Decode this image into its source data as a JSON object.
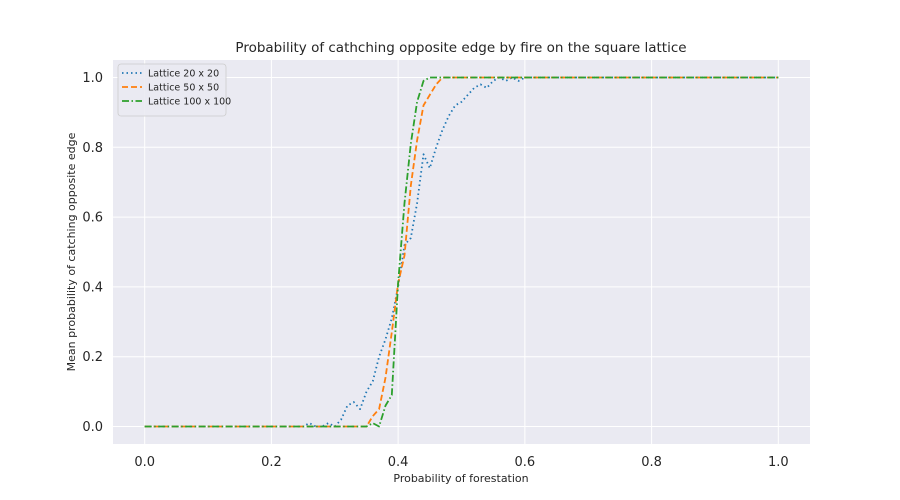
{
  "chart_data": {
    "type": "line",
    "title": "Probability of cathching opposite edge by fire on the square lattice",
    "xlabel": "Probability of forestation",
    "ylabel": "Mean probability of catching opposite edge",
    "xlim": [
      -0.05,
      1.05
    ],
    "ylim": [
      -0.05,
      1.05
    ],
    "x_ticks": [
      "0.0",
      "0.2",
      "0.4",
      "0.6",
      "0.8",
      "1.0"
    ],
    "y_ticks": [
      "0.0",
      "0.2",
      "0.4",
      "0.6",
      "0.8",
      "1.0"
    ],
    "grid": true,
    "legend_position": "top-left",
    "series": [
      {
        "name": "Lattice 20 x 20",
        "color": "#1f77b4",
        "dash": "dotted",
        "x": [
          0.0,
          0.25,
          0.26,
          0.27,
          0.28,
          0.29,
          0.3,
          0.31,
          0.32,
          0.33,
          0.34,
          0.35,
          0.36,
          0.37,
          0.38,
          0.39,
          0.4,
          0.41,
          0.42,
          0.43,
          0.44,
          0.45,
          0.46,
          0.47,
          0.48,
          0.49,
          0.5,
          0.51,
          0.52,
          0.53,
          0.54,
          0.55,
          0.56,
          0.57,
          0.58,
          0.59,
          0.6,
          1.0
        ],
        "y": [
          0.0,
          0.0,
          0.01,
          0.0,
          0.0,
          0.01,
          0.0,
          0.02,
          0.06,
          0.07,
          0.05,
          0.1,
          0.13,
          0.2,
          0.25,
          0.31,
          0.4,
          0.52,
          0.54,
          0.64,
          0.78,
          0.74,
          0.8,
          0.85,
          0.89,
          0.92,
          0.93,
          0.95,
          0.97,
          0.98,
          0.97,
          0.99,
          1.0,
          0.99,
          1.0,
          0.99,
          1.0,
          1.0
        ]
      },
      {
        "name": "Lattice 50 x 50",
        "color": "#ff7f0e",
        "dash": "dashed",
        "x": [
          0.0,
          0.35,
          0.36,
          0.37,
          0.38,
          0.39,
          0.4,
          0.41,
          0.42,
          0.43,
          0.44,
          0.45,
          0.46,
          0.47,
          0.48,
          1.0
        ],
        "y": [
          0.0,
          0.0,
          0.03,
          0.05,
          0.14,
          0.27,
          0.41,
          0.49,
          0.69,
          0.82,
          0.92,
          0.95,
          0.98,
          1.0,
          1.0,
          1.0
        ]
      },
      {
        "name": "Lattice 100 x 100",
        "color": "#2ca02c",
        "dash": "dashdot",
        "x": [
          0.0,
          0.35,
          0.36,
          0.37,
          0.38,
          0.39,
          0.4,
          0.41,
          0.42,
          0.43,
          0.44,
          0.45,
          0.46,
          1.0
        ],
        "y": [
          0.0,
          0.0,
          0.01,
          0.0,
          0.06,
          0.09,
          0.41,
          0.64,
          0.81,
          0.93,
          0.99,
          1.0,
          1.0,
          1.0
        ]
      }
    ]
  }
}
